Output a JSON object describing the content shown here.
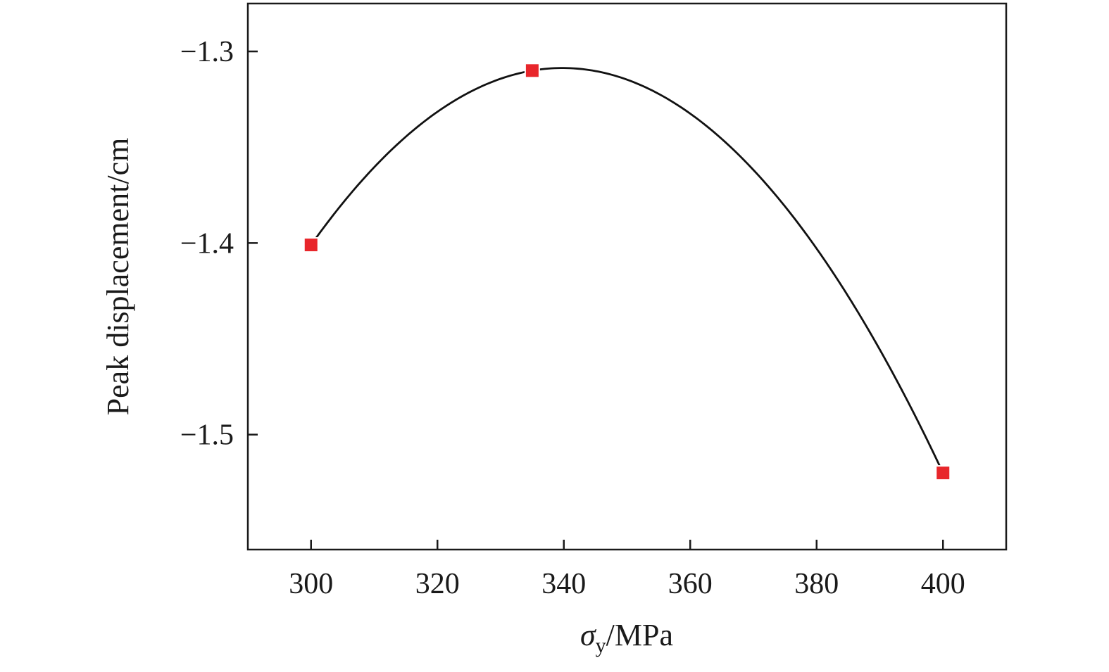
{
  "chart_data": {
    "type": "scatter",
    "title": "",
    "xlabel_symbol": "σ",
    "xlabel_subscript": "y",
    "xlabel_unit": "/MPa",
    "ylabel": "Peak displacement/cm",
    "xlim": [
      290,
      410
    ],
    "ylim": [
      -1.56,
      -1.275
    ],
    "xticks": [
      300,
      320,
      340,
      360,
      380,
      400
    ],
    "yticks": [
      -1.3,
      -1.4,
      -1.5
    ],
    "ytick_labels": [
      "−1.3",
      "−1.4",
      "−1.5"
    ],
    "grid": false,
    "legend": "none",
    "series": [
      {
        "marker": "square",
        "color": "#e8262b",
        "x": [
          300,
          335,
          400
        ],
        "y": [
          -1.401,
          -1.31,
          -1.52
        ]
      }
    ],
    "fit_curve": {
      "type": "quadratic-through-points",
      "color": "#111111"
    }
  }
}
